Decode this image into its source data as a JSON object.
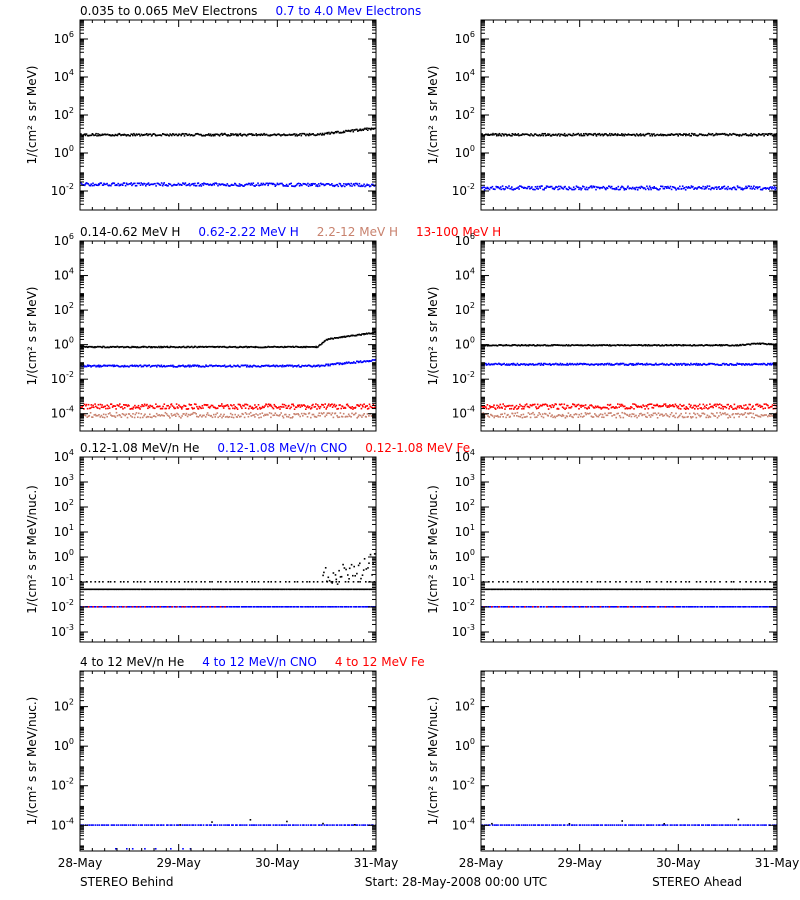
{
  "colors": {
    "black": "#000000",
    "blue": "#0000ff",
    "tan": "#c8826e",
    "red": "#ff0000",
    "axis": "#000000",
    "background": "#ffffff"
  },
  "footer": {
    "left": "STEREO Behind",
    "center": "Start: 28-May-2008 00:00 UTC",
    "right": "STEREO Ahead"
  },
  "chart_data": [
    {
      "type": "scatter",
      "scale": "log",
      "title_items": [
        {
          "text": "0.035 to 0.065 MeV Electrons",
          "color": "black"
        },
        {
          "text": "0.7 to 4.0 Mev Electrons",
          "color": "blue"
        }
      ],
      "ylabel": "1/(cm² s sr MeV)",
      "ylim_exp": [
        -3,
        7
      ],
      "tick_exps": [
        -2,
        0,
        2,
        4,
        6
      ],
      "tick_style": "power",
      "xlim": [
        0,
        3
      ],
      "x_tick_labels": [
        "28-May",
        "29-May",
        "30-May",
        "31-May"
      ],
      "panels": [
        {
          "spacecraft": "STEREO Behind",
          "series": [
            {
              "color": "black",
              "density": 320,
              "scatter": 0.06,
              "segments": [
                [
                  0,
                  0.95
                ],
                [
                  2.4,
                  0.95
                ],
                [
                  3.0,
                  1.3
                ]
              ]
            },
            {
              "color": "blue",
              "density": 320,
              "scatter": 0.08,
              "segments": [
                [
                  0,
                  -1.65
                ],
                [
                  3.0,
                  -1.7
                ]
              ]
            }
          ]
        },
        {
          "spacecraft": "STEREO Ahead",
          "series": [
            {
              "color": "black",
              "density": 320,
              "scatter": 0.06,
              "segments": [
                [
                  0,
                  0.95
                ],
                [
                  3.0,
                  0.95
                ]
              ]
            },
            {
              "color": "blue",
              "density": 320,
              "scatter": 0.1,
              "segments": [
                [
                  0,
                  -1.85
                ],
                [
                  3.0,
                  -1.85
                ]
              ]
            }
          ]
        }
      ]
    },
    {
      "type": "scatter",
      "scale": "log",
      "title_items": [
        {
          "text": "0.14-0.62 MeV H",
          "color": "black"
        },
        {
          "text": "0.62-2.22 MeV H",
          "color": "blue"
        },
        {
          "text": "2.2-12 MeV H",
          "color": "tan"
        },
        {
          "text": "13-100 MeV H",
          "color": "red"
        }
      ],
      "ylabel": "1/(cm² s sr MeV)",
      "ylim_exp": [
        -5,
        6
      ],
      "tick_exps": [
        -4,
        -2,
        0,
        2,
        4,
        6
      ],
      "tick_style": "power",
      "xlim": [
        0,
        3
      ],
      "x_tick_labels": [
        "28-May",
        "29-May",
        "30-May",
        "31-May"
      ],
      "panels": [
        {
          "spacecraft": "STEREO Behind",
          "series": [
            {
              "color": "black",
              "density": 320,
              "scatter": 0.03,
              "segments": [
                [
                  0,
                  -0.15
                ],
                [
                  2.4,
                  -0.15
                ],
                [
                  2.5,
                  0.3
                ],
                [
                  3.0,
                  0.7
                ]
              ]
            },
            {
              "color": "blue",
              "density": 320,
              "scatter": 0.05,
              "segments": [
                [
                  0,
                  -1.25
                ],
                [
                  2.4,
                  -1.25
                ],
                [
                  3.0,
                  -0.9
                ]
              ]
            },
            {
              "color": "tan",
              "density": 250,
              "scatter": 0.15,
              "segments": [
                [
                  0,
                  -4.1
                ],
                [
                  3.0,
                  -4.1
                ]
              ]
            },
            {
              "color": "red",
              "density": 320,
              "scatter": 0.15,
              "segments": [
                [
                  0,
                  -3.6
                ],
                [
                  3.0,
                  -3.6
                ]
              ]
            }
          ]
        },
        {
          "spacecraft": "STEREO Ahead",
          "series": [
            {
              "color": "black",
              "density": 320,
              "scatter": 0.03,
              "segments": [
                [
                  0,
                  -0.05
                ],
                [
                  2.6,
                  -0.05
                ],
                [
                  2.8,
                  0.05
                ],
                [
                  3.0,
                  0.0
                ]
              ]
            },
            {
              "color": "blue",
              "density": 320,
              "scatter": 0.05,
              "segments": [
                [
                  0,
                  -1.15
                ],
                [
                  3.0,
                  -1.15
                ]
              ]
            },
            {
              "color": "tan",
              "density": 250,
              "scatter": 0.15,
              "segments": [
                [
                  0,
                  -4.1
                ],
                [
                  3.0,
                  -4.1
                ]
              ]
            },
            {
              "color": "red",
              "density": 320,
              "scatter": 0.15,
              "segments": [
                [
                  0,
                  -3.6
                ],
                [
                  3.0,
                  -3.6
                ]
              ]
            }
          ]
        }
      ]
    },
    {
      "type": "scatter",
      "scale": "log",
      "title_items": [
        {
          "text": "0.12-1.08 MeV/n He",
          "color": "black"
        },
        {
          "text": "0.12-1.08 MeV/n CNO",
          "color": "blue"
        },
        {
          "text": "0.12-1.08 MeV Fe",
          "color": "red"
        }
      ],
      "ylabel": "1/(cm² s sr MeV/nuc.)",
      "ylim_exp": [
        -3.4,
        4
      ],
      "tick_exps": [
        -3,
        -2,
        -1,
        0,
        1,
        2,
        3,
        4
      ],
      "tick_style": "power",
      "xlim": [
        0,
        3
      ],
      "x_tick_labels": [
        "28-May",
        "29-May",
        "30-May",
        "31-May"
      ],
      "panels": [
        {
          "spacecraft": "STEREO Behind",
          "series": [
            {
              "color": "black",
              "density": 280,
              "scatter": 0.0,
              "segments": [
                [
                  0,
                  -1.3
                ],
                [
                  3.0,
                  -1.3
                ]
              ]
            },
            {
              "color": "black",
              "density": 70,
              "scatter": 0.0,
              "segments": [
                [
                  0,
                  -1.0
                ],
                [
                  3.0,
                  -1.0
                ]
              ]
            },
            {
              "color": "black",
              "density": 40,
              "scatter": 0.45,
              "segments": [
                [
                  2.45,
                  -0.8
                ],
                [
                  3.0,
                  -0.3
                ]
              ]
            },
            {
              "color": "blue",
              "density": 200,
              "scatter": 0.0,
              "segments": [
                [
                  0,
                  -2.0
                ],
                [
                  3.0,
                  -2.0
                ]
              ]
            },
            {
              "color": "red",
              "density": 30,
              "scatter": 0.0,
              "segments": [
                [
                  0,
                  -2.0
                ],
                [
                  1.5,
                  -2.0
                ]
              ]
            }
          ]
        },
        {
          "spacecraft": "STEREO Ahead",
          "series": [
            {
              "color": "black",
              "density": 280,
              "scatter": 0.0,
              "segments": [
                [
                  0,
                  -1.3
                ],
                [
                  3.0,
                  -1.3
                ]
              ]
            },
            {
              "color": "black",
              "density": 60,
              "scatter": 0.0,
              "segments": [
                [
                  0,
                  -1.0
                ],
                [
                  3.0,
                  -1.0
                ]
              ]
            },
            {
              "color": "blue",
              "density": 200,
              "scatter": 0.0,
              "segments": [
                [
                  0,
                  -2.0
                ],
                [
                  3.0,
                  -2.0
                ]
              ]
            },
            {
              "color": "red",
              "density": 25,
              "scatter": 0.0,
              "segments": [
                [
                  0,
                  -2.0
                ],
                [
                  2.0,
                  -2.0
                ]
              ]
            }
          ]
        }
      ]
    },
    {
      "type": "scatter",
      "scale": "log",
      "title_items": [
        {
          "text": "4 to 12 MeV/n He",
          "color": "black"
        },
        {
          "text": "4 to 12 MeV/n CNO",
          "color": "blue"
        },
        {
          "text": "4 to 12 MeV Fe",
          "color": "red"
        }
      ],
      "ylabel": "1/(cm² s sr MeV/nuc.)",
      "ylim_exp": [
        -5.3,
        3.8
      ],
      "tick_exps": [
        -4,
        -2,
        0,
        2
      ],
      "tick_style": "power",
      "xlim": [
        0,
        3
      ],
      "x_tick_labels": [
        "28-May",
        "29-May",
        "30-May",
        "31-May"
      ],
      "panels": [
        {
          "spacecraft": "STEREO Behind",
          "series": [
            {
              "color": "blue",
              "density": 150,
              "scatter": 0.0,
              "segments": [
                [
                  0,
                  -4.0
                ],
                [
                  3.0,
                  -4.0
                ]
              ]
            },
            {
              "color": "black",
              "density": 6,
              "scatter": 0.15,
              "segments": [
                [
                  0.9,
                  -3.85
                ],
                [
                  3.0,
                  -3.85
                ]
              ]
            },
            {
              "color": "blue",
              "density": 8,
              "scatter": 0.0,
              "segments": [
                [
                  0.3,
                  -5.2
                ],
                [
                  1.2,
                  -5.2
                ]
              ]
            }
          ]
        },
        {
          "spacecraft": "STEREO Ahead",
          "series": [
            {
              "color": "blue",
              "density": 150,
              "scatter": 0.0,
              "segments": [
                [
                  0,
                  -4.0
                ],
                [
                  3.0,
                  -4.0
                ]
              ]
            },
            {
              "color": "black",
              "density": 5,
              "scatter": 0.15,
              "segments": [
                [
                  0.1,
                  -3.8
                ],
                [
                  2.9,
                  -3.8
                ]
              ]
            }
          ]
        }
      ]
    }
  ]
}
